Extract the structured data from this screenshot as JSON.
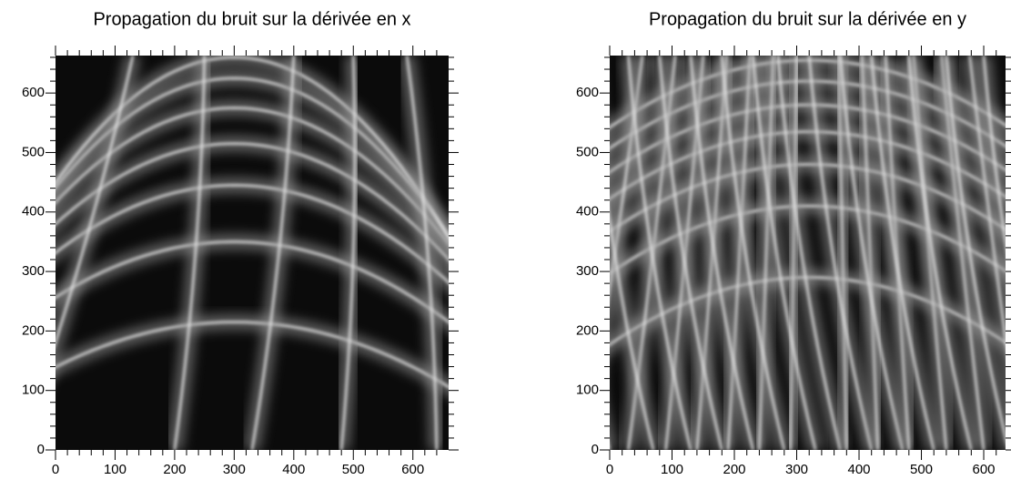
{
  "chart_data": [
    {
      "type": "heatmap",
      "title": "Propagation du bruit sur la dérivée en x",
      "xlim": [
        0,
        660
      ],
      "ylim": [
        0,
        663
      ],
      "xticks": [
        0,
        100,
        200,
        300,
        400,
        500,
        600
      ],
      "yticks": [
        0,
        100,
        200,
        300,
        400,
        500,
        600
      ],
      "minor_xticks": [
        20,
        40,
        60,
        80,
        120,
        140,
        160,
        180,
        220,
        240,
        260,
        280,
        320,
        340,
        360,
        380,
        420,
        440,
        460,
        480,
        520,
        540,
        560,
        580,
        620,
        640
      ],
      "minor_yticks": [
        20,
        40,
        60,
        80,
        120,
        140,
        160,
        180,
        220,
        240,
        260,
        280,
        320,
        340,
        360,
        380,
        420,
        440,
        460,
        480,
        520,
        540,
        560,
        580,
        620,
        640,
        660
      ]
    },
    {
      "type": "heatmap",
      "title": "Propagation du bruit sur la dérivée en y",
      "xlim": [
        0,
        635
      ],
      "ylim": [
        0,
        663
      ],
      "xticks": [
        0,
        100,
        200,
        300,
        400,
        500,
        600
      ],
      "yticks": [
        0,
        100,
        200,
        300,
        400,
        500,
        600
      ],
      "minor_xticks": [
        20,
        40,
        60,
        80,
        120,
        140,
        160,
        180,
        220,
        240,
        260,
        280,
        320,
        340,
        360,
        380,
        420,
        440,
        460,
        480,
        520,
        540,
        560,
        580,
        620
      ],
      "minor_yticks": [
        20,
        40,
        60,
        80,
        120,
        140,
        160,
        180,
        220,
        240,
        260,
        280,
        320,
        340,
        360,
        380,
        420,
        440,
        460,
        480,
        520,
        540,
        560,
        580,
        620,
        640,
        660
      ]
    }
  ]
}
